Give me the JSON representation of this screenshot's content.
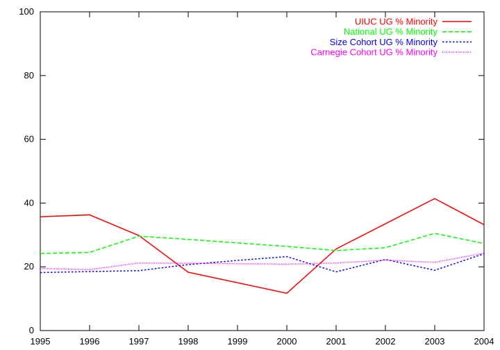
{
  "chart_data": {
    "type": "line",
    "title": "",
    "xlabel": "",
    "ylabel": "",
    "xlim": [
      1995,
      2004
    ],
    "ylim": [
      0,
      100
    ],
    "x_ticks": [
      1995,
      1996,
      1997,
      1998,
      1999,
      2000,
      2001,
      2002,
      2003,
      2004
    ],
    "y_ticks": [
      0,
      20,
      40,
      60,
      80,
      100
    ],
    "grid": false,
    "legend_placement": "top-right",
    "x": [
      1995,
      1996,
      1997,
      1998,
      1999,
      2000,
      2001,
      2002,
      2003,
      2004
    ],
    "series": [
      {
        "name": "UIUC UG % Minority",
        "color": "#ff0000",
        "dash": "solid",
        "values": [
          35.7,
          36.3,
          29.8,
          18.3,
          15.0,
          11.7,
          25.6,
          33.5,
          41.4,
          33.2
        ]
      },
      {
        "name": "National UG % Minority",
        "color": "#00ff00",
        "dash": "dashed",
        "values": [
          24.2,
          24.5,
          29.6,
          28.6,
          27.5,
          26.4,
          25.1,
          26.0,
          30.5,
          27.3
        ]
      },
      {
        "name": "Size Cohort UG % Minority",
        "color": "#0000ff",
        "dash": "dotted",
        "values": [
          18.2,
          18.5,
          18.8,
          20.7,
          22.0,
          23.2,
          18.4,
          22.3,
          18.9,
          24.1
        ]
      },
      {
        "name": "Carnegie Cohort UG % Minority",
        "color": "#ff00ff",
        "dash": "fine-dotted",
        "values": [
          19.5,
          19.1,
          21.2,
          21.1,
          21.0,
          20.8,
          21.2,
          22.1,
          21.4,
          24.3
        ]
      }
    ]
  }
}
